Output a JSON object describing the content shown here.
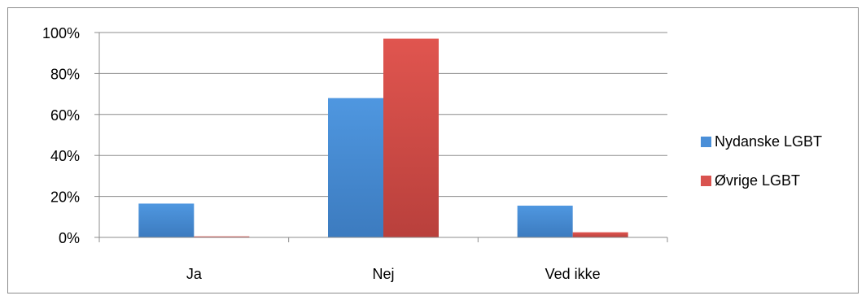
{
  "chart_data": {
    "type": "bar",
    "categories": [
      "Ja",
      "Nej",
      "Ved ikke"
    ],
    "series": [
      {
        "name": "Nydanske LGBT",
        "values": [
          16.5,
          68,
          15.5
        ],
        "color": "#4a8fd8"
      },
      {
        "name": "Øvrige LGBT",
        "values": [
          0.5,
          97,
          2.5
        ],
        "color": "#d9534f"
      }
    ],
    "ylim": [
      0,
      100
    ],
    "yticks": [
      "0%",
      "20%",
      "40%",
      "60%",
      "80%",
      "100%"
    ],
    "ytick_values": [
      0,
      20,
      40,
      60,
      80,
      100
    ],
    "grid": true,
    "legend_position": "right",
    "title": "",
    "xlabel": "",
    "ylabel": ""
  }
}
